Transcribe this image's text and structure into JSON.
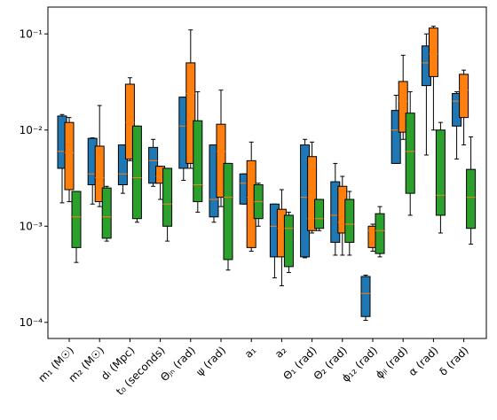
{
  "chart_data": {
    "type": "box",
    "categories": [
      "m₁ (M☉)",
      "m₂ (M☉)",
      "dₗ (Mpc)",
      "t₀ (seconds)",
      "Θⱼₙ (rad)",
      "ψ (rad)",
      "a₁",
      "a₂",
      "Θ₁ (rad)",
      "Θ₂ (rad)",
      "ϕ₁₂ (rad)",
      "ϕⱼₗ (rad)",
      "α (rad)",
      "δ (rad)"
    ],
    "log_y": true,
    "ylim": [
      6.8e-05,
      0.19
    ],
    "yticks": [
      {
        "value": 0.0001,
        "label": "10⁻⁴"
      },
      {
        "value": 0.001,
        "label": "10⁻³"
      },
      {
        "value": 0.01,
        "label": "10⁻²"
      },
      {
        "value": 0.1,
        "label": "10⁻¹"
      }
    ],
    "median_color": "#ff7f0e",
    "series": [
      {
        "color": "#1f77b4",
        "whislo": [
          0.00175,
          0.0017,
          0.0022,
          0.0026,
          0.003,
          0.0011,
          0.0017,
          0.00029,
          0.00047,
          0.0005,
          0.000105,
          0.0045,
          0.0055,
          0.005
        ],
        "q1": [
          0.004,
          0.0027,
          0.0027,
          0.0028,
          0.004,
          0.00125,
          0.0017,
          0.00048,
          0.00048,
          0.00068,
          0.000115,
          0.0045,
          0.029,
          0.011
        ],
        "median": [
          0.006,
          0.0035,
          0.0035,
          0.0048,
          0.011,
          0.0019,
          0.0028,
          0.001,
          0.002,
          0.0013,
          0.0002,
          0.01,
          0.05,
          0.02
        ],
        "q3": [
          0.014,
          0.0082,
          0.007,
          0.0066,
          0.022,
          0.007,
          0.0035,
          0.0017,
          0.007,
          0.0029,
          0.0003,
          0.016,
          0.075,
          0.024
        ],
        "whishi": [
          0.0145,
          0.0083,
          0.007,
          0.008,
          0.022,
          0.007,
          0.0035,
          0.0017,
          0.008,
          0.0045,
          0.00031,
          0.023,
          0.1,
          0.025
        ]
      },
      {
        "color": "#ff7f0e",
        "whislo": [
          0.0018,
          0.0016,
          0.0048,
          0.0019,
          0.004,
          0.0016,
          0.00055,
          0.00024,
          0.00085,
          0.0005,
          0.00055,
          0.008,
          0.01,
          0.007
        ],
        "q1": [
          0.0024,
          0.0018,
          0.005,
          0.0028,
          0.0045,
          0.002,
          0.0006,
          0.00048,
          0.0009,
          0.00085,
          0.0006,
          0.0095,
          0.036,
          0.0135
        ],
        "median": [
          0.0058,
          0.0032,
          0.012,
          0.0033,
          0.024,
          0.006,
          0.002,
          0.00095,
          0.0012,
          0.0011,
          0.0009,
          0.02,
          0.062,
          0.026
        ],
        "q3": [
          0.012,
          0.0068,
          0.03,
          0.0042,
          0.05,
          0.0115,
          0.0048,
          0.0015,
          0.0053,
          0.0026,
          0.001,
          0.032,
          0.115,
          0.038
        ],
        "whishi": [
          0.0135,
          0.018,
          0.035,
          0.0042,
          0.11,
          0.026,
          0.0075,
          0.0024,
          0.0075,
          0.0033,
          0.00105,
          0.06,
          0.12,
          0.042
        ]
      },
      {
        "color": "#2ca02c",
        "whislo": [
          0.00042,
          0.0007,
          0.0011,
          0.0007,
          0.0014,
          0.00035,
          0.001,
          0.00033,
          0.0009,
          0.0005,
          0.00048,
          0.0013,
          0.00085,
          0.00065
        ],
        "q1": [
          0.0006,
          0.00075,
          0.0012,
          0.001,
          0.0018,
          0.00045,
          0.0012,
          0.00038,
          0.00095,
          0.00068,
          0.00052,
          0.0022,
          0.0013,
          0.00095
        ],
        "median": [
          0.00125,
          0.00125,
          0.0032,
          0.0017,
          0.0027,
          0.002,
          0.0018,
          0.00095,
          0.0012,
          0.00105,
          0.0009,
          0.006,
          0.0021,
          0.002
        ],
        "q3": [
          0.0023,
          0.0025,
          0.011,
          0.004,
          0.0125,
          0.0045,
          0.0027,
          0.0013,
          0.0019,
          0.0019,
          0.00135,
          0.015,
          0.01,
          0.0039
        ],
        "whishi": [
          0.0023,
          0.0026,
          0.011,
          0.004,
          0.025,
          0.0045,
          0.0028,
          0.0014,
          0.0019,
          0.0023,
          0.0016,
          0.025,
          0.012,
          0.0085
        ]
      }
    ]
  }
}
